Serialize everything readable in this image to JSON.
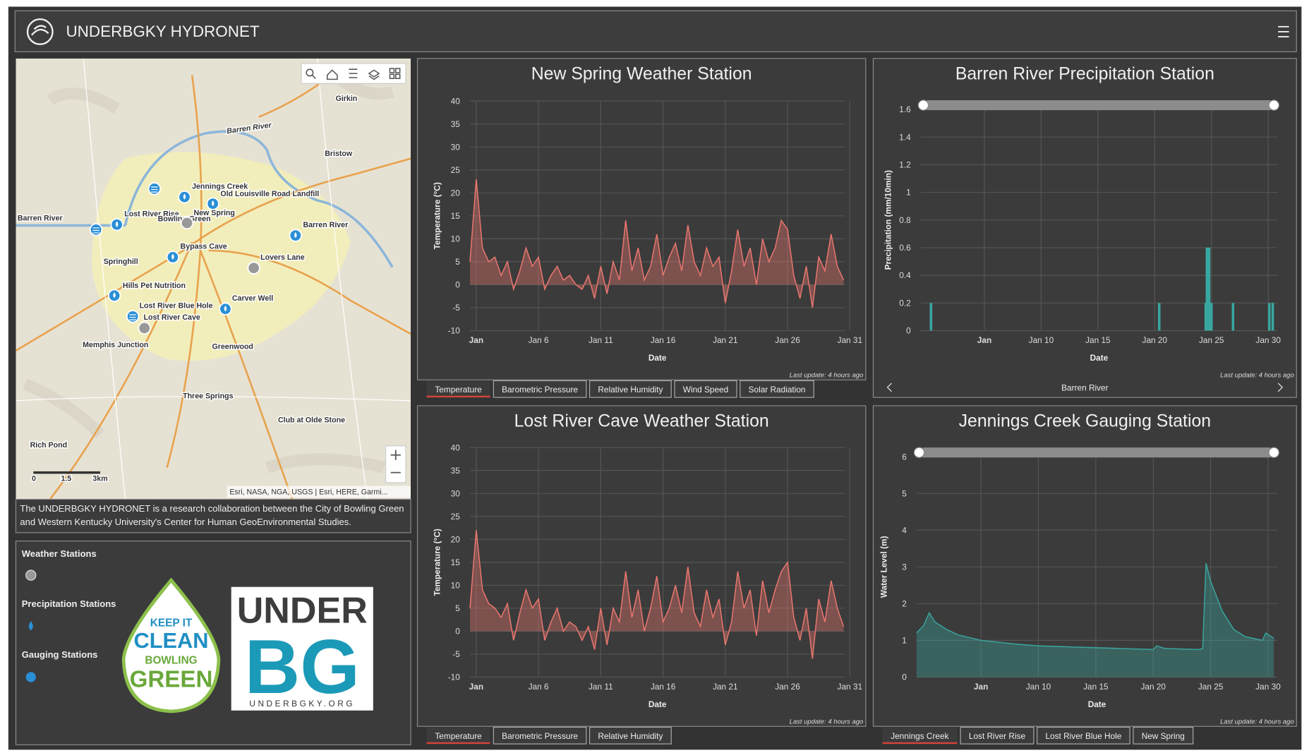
{
  "header": {
    "title": "UNDERBGKY HYDRONET"
  },
  "map": {
    "labels": [
      "Barren River",
      "Girkin",
      "Bristow",
      "Jennings Creek",
      "Old Louisville Road Landfill",
      "Lost River Rise",
      "New Spring",
      "Bowling Green",
      "Barren River",
      "Bypass Cave",
      "Springhill",
      "Lovers Lane",
      "Hills Pet Nutrition",
      "Carver Well",
      "Lost River Blue Hole",
      "Lost River Cave",
      "Memphis Junction",
      "Greenwood",
      "Three Springs",
      "Rich Pond",
      "Club at Olde Stone",
      "Barren River"
    ],
    "scale": [
      "0",
      "1.5",
      "3km"
    ],
    "attribution": "Esri, NASA, NGA, USGS | Esri, HERE, Garmi..."
  },
  "description": "The UNDERBGKY HYDRONET is a research collaboration between the City of Bowling Green and Western Kentucky University's Center for Human GeoEnvironmental Studies.",
  "legend": {
    "items": [
      "Weather Stations",
      "Precipitation Stations",
      "Gauging Stations"
    ]
  },
  "logos": {
    "keep_it_clean": [
      "KEEP IT",
      "CLEAN",
      "BOWLING",
      "GREEN"
    ],
    "underbg": [
      "UNDER",
      "BG",
      "UNDERBGKY.ORG"
    ]
  },
  "chart_data": [
    {
      "type": "area",
      "title": "New Spring Weather Station",
      "x_label": "Date",
      "y_label": "Temperature (°C)",
      "color": "#e8766e",
      "note": "Last update: 4 hours ago",
      "tabs": [
        "Temperature",
        "Barometric Pressure",
        "Relative Humidity",
        "Wind Speed",
        "Solar Radiation"
      ],
      "x": [
        0.5,
        1,
        1.5,
        2,
        2.5,
        3,
        3.5,
        4,
        4.5,
        5,
        5.5,
        6,
        6.5,
        7,
        7.5,
        8,
        8.5,
        9,
        9.5,
        10,
        10.5,
        11,
        11.5,
        12,
        12.5,
        13,
        13.5,
        14,
        14.5,
        15,
        15.5,
        16,
        16.5,
        17,
        17.5,
        18,
        18.5,
        19,
        19.5,
        20,
        20.5,
        21,
        21.5,
        22,
        22.5,
        23,
        23.5,
        24,
        24.5,
        25,
        25.5,
        26,
        26.5,
        27,
        27.5,
        28,
        28.5,
        29,
        29.5,
        30,
        30.5
      ],
      "values": [
        5,
        23,
        8,
        5,
        6,
        2,
        5,
        -1,
        3,
        8,
        4,
        6,
        -1,
        2,
        4,
        1,
        2,
        0,
        -1,
        2,
        -3,
        4,
        -2,
        5,
        1,
        14,
        3,
        8,
        1,
        4,
        11,
        2,
        6,
        9,
        3,
        13,
        5,
        2,
        8,
        4,
        6,
        -4,
        3,
        12,
        4,
        8,
        0,
        10,
        5,
        8,
        14,
        12,
        2,
        -3,
        4,
        -5,
        6,
        3,
        11,
        4,
        1
      ],
      "xlim": [
        0.5,
        30.6
      ],
      "ylim": [
        -10,
        40
      ],
      "yticks": [
        -10,
        -5,
        0,
        5,
        10,
        15,
        20,
        25,
        30,
        35,
        40
      ],
      "xticks": [
        {
          "value": 1,
          "label": "Jan"
        },
        {
          "value": 6,
          "label": "Jan 6"
        },
        {
          "value": 11,
          "label": "Jan 11"
        },
        {
          "value": 16,
          "label": "Jan 16"
        },
        {
          "value": 21,
          "label": "Jan 21"
        },
        {
          "value": 26,
          "label": "Jan 26"
        },
        {
          "value": 31,
          "label": "Jan 31"
        }
      ],
      "grid": true,
      "slider": false
    },
    {
      "type": "bar",
      "title": "Barren River Precipitation Station",
      "x_label": "Date",
      "y_label": "Precipitation (mm/10min)",
      "color": "#38a7a0",
      "note": "Last update: 4 hours ago",
      "footer_label": "Barren River",
      "x": [
        0.3,
        20.4,
        24.5,
        24.6,
        24.8,
        25,
        26.9,
        30.1,
        30.4
      ],
      "values": [
        0.2,
        0.2,
        0.2,
        0.6,
        0.6,
        0.2,
        0.2,
        0.2,
        0.2
      ],
      "xlim": [
        -0.6,
        30.8
      ],
      "ylim": [
        0,
        1.6
      ],
      "yticks": [
        0,
        0.2,
        0.4,
        0.6,
        0.8,
        1,
        1.2,
        1.4,
        1.6
      ],
      "xticks": [
        {
          "value": 5,
          "label": "Jan"
        },
        {
          "value": 10,
          "label": "Jan 10"
        },
        {
          "value": 15,
          "label": "Jan 15"
        },
        {
          "value": 20,
          "label": "Jan 20"
        },
        {
          "value": 25,
          "label": "Jan 25"
        },
        {
          "value": 30,
          "label": "Jan 30"
        }
      ],
      "grid": true,
      "slider": true
    },
    {
      "type": "area",
      "title": "Lost River Cave Weather Station",
      "x_label": "Date",
      "y_label": "Temperature (°C)",
      "color": "#e8766e",
      "note": "Last update: 4 hours ago",
      "tabs": [
        "Temperature",
        "Barometric Pressure",
        "Relative Humidity"
      ],
      "x": [
        0.5,
        1,
        1.5,
        2,
        2.5,
        3,
        3.5,
        4,
        4.5,
        5,
        5.5,
        6,
        6.5,
        7,
        7.5,
        8,
        8.5,
        9,
        9.5,
        10,
        10.5,
        11,
        11.5,
        12,
        12.5,
        13,
        13.5,
        14,
        14.5,
        15,
        15.5,
        16,
        16.5,
        17,
        17.5,
        18,
        18.5,
        19,
        19.5,
        20,
        20.5,
        21,
        21.5,
        22,
        22.5,
        23,
        23.5,
        24,
        24.5,
        25,
        25.5,
        26,
        26.5,
        27,
        27.5,
        28,
        28.5,
        29,
        29.5,
        30,
        30.5
      ],
      "values": [
        5,
        22,
        9,
        6,
        5,
        3,
        6,
        -2,
        4,
        9,
        5,
        7,
        -2,
        2,
        5,
        0,
        2,
        1,
        -2,
        1,
        -4,
        5,
        -3,
        5,
        2,
        13,
        3,
        9,
        0,
        5,
        12,
        2,
        5,
        10,
        4,
        14,
        4,
        1,
        9,
        3,
        7,
        -3,
        2,
        13,
        5,
        9,
        -1,
        11,
        4,
        9,
        13,
        15,
        3,
        -2,
        5,
        -6,
        7,
        2,
        11,
        5,
        1
      ],
      "xlim": [
        0.5,
        30.6
      ],
      "ylim": [
        -10,
        40
      ],
      "yticks": [
        -10,
        -5,
        0,
        5,
        10,
        15,
        20,
        25,
        30,
        35,
        40
      ],
      "xticks": [
        {
          "value": 1,
          "label": "Jan"
        },
        {
          "value": 6,
          "label": "Jan 6"
        },
        {
          "value": 11,
          "label": "Jan 11"
        },
        {
          "value": 16,
          "label": "Jan 16"
        },
        {
          "value": 21,
          "label": "Jan 21"
        },
        {
          "value": 26,
          "label": "Jan 26"
        },
        {
          "value": 31,
          "label": "Jan 31"
        }
      ],
      "grid": true,
      "slider": false
    },
    {
      "type": "area",
      "title": "Jennings Creek Gauging Station",
      "x_label": "Date",
      "y_label": "Water Level (m)",
      "color": "#3aa39c",
      "note": "Last update: 4 hours ago",
      "tabs": [
        "Jennings Creek",
        "Lost River Rise",
        "Lost River Blue Hole",
        "New Spring"
      ],
      "x": [
        -0.6,
        0,
        0.5,
        1,
        2,
        3,
        5,
        8,
        10,
        15,
        20,
        20.3,
        21,
        24,
        24.3,
        24.6,
        25,
        26,
        27,
        28,
        29.5,
        29.8,
        30.5
      ],
      "values": [
        1.2,
        1.4,
        1.75,
        1.5,
        1.3,
        1.15,
        1.0,
        0.9,
        0.85,
        0.8,
        0.75,
        0.85,
        0.78,
        0.75,
        0.78,
        3.1,
        2.6,
        1.8,
        1.3,
        1.1,
        1.0,
        1.2,
        1.05
      ],
      "xlim": [
        -0.6,
        30.8
      ],
      "ylim": [
        0,
        6
      ],
      "yticks": [
        0,
        1,
        2,
        3,
        4,
        5,
        6
      ],
      "xticks": [
        {
          "value": 5,
          "label": "Jan"
        },
        {
          "value": 10,
          "label": "Jan 10"
        },
        {
          "value": 15,
          "label": "Jan 15"
        },
        {
          "value": 20,
          "label": "Jan 20"
        },
        {
          "value": 25,
          "label": "Jan 25"
        },
        {
          "value": 30,
          "label": "Jan 30"
        }
      ],
      "grid": true,
      "slider": true
    }
  ]
}
